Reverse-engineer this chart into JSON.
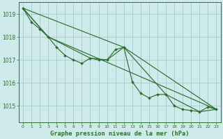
{
  "background_color": "#ceeaea",
  "grid_color": "#aacfcf",
  "line_color": "#2d6e2d",
  "title": "Graphe pression niveau de la mer (hPa)",
  "xlim": [
    -0.5,
    23.5
  ],
  "ylim": [
    1014.3,
    1019.5
  ],
  "yticks": [
    1015,
    1016,
    1017,
    1018,
    1019
  ],
  "xticks": [
    0,
    1,
    2,
    3,
    4,
    5,
    6,
    7,
    8,
    9,
    10,
    11,
    12,
    13,
    14,
    15,
    16,
    17,
    18,
    19,
    20,
    21,
    22,
    23
  ],
  "series_main": {
    "x": [
      0,
      1,
      2,
      3,
      4,
      5,
      6,
      7,
      8,
      9,
      10,
      11,
      12,
      13,
      14,
      15,
      16,
      17,
      18,
      19,
      20,
      21,
      22,
      23
    ],
    "y": [
      1019.25,
      1018.65,
      1018.35,
      1018.0,
      1017.55,
      1017.2,
      1017.0,
      1016.85,
      1017.08,
      1017.0,
      1017.0,
      1017.45,
      1017.55,
      1016.05,
      1015.55,
      1015.35,
      1015.5,
      1015.5,
      1015.0,
      1014.85,
      1014.8,
      1014.75,
      1014.95,
      1014.85
    ]
  },
  "series_lines": [
    {
      "x": [
        0,
        3,
        8,
        10,
        12,
        17,
        21,
        23
      ],
      "y": [
        1019.25,
        1018.0,
        1017.08,
        1017.0,
        1017.55,
        1015.5,
        1014.75,
        1014.85
      ]
    },
    {
      "x": [
        0,
        3,
        23
      ],
      "y": [
        1019.25,
        1018.0,
        1014.85
      ]
    },
    {
      "x": [
        0,
        12,
        23
      ],
      "y": [
        1019.25,
        1017.55,
        1014.85
      ]
    }
  ]
}
